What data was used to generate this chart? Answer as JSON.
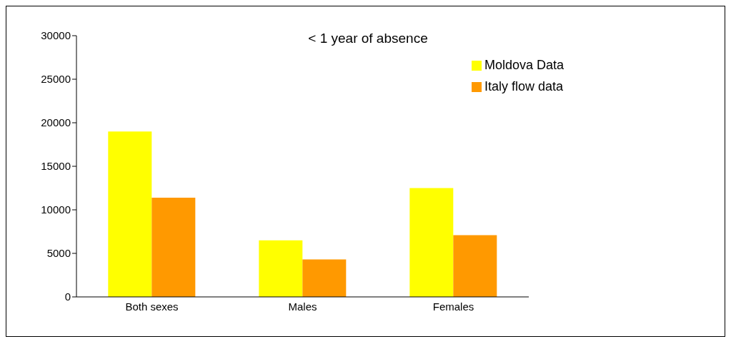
{
  "chart_data": {
    "type": "bar",
    "title": "< 1 year of absence",
    "categories": [
      "Both sexes",
      "Males",
      "Females"
    ],
    "series": [
      {
        "name": "Moldova Data",
        "color": "#ffff00",
        "values": [
          19000,
          6500,
          12500
        ]
      },
      {
        "name": "Italy flow data",
        "color": "#ff9900",
        "values": [
          11400,
          4300,
          7100
        ]
      }
    ],
    "ylim": [
      0,
      30000
    ],
    "yticks": [
      0,
      5000,
      10000,
      15000,
      20000,
      25000,
      30000
    ],
    "legend": "top right"
  }
}
